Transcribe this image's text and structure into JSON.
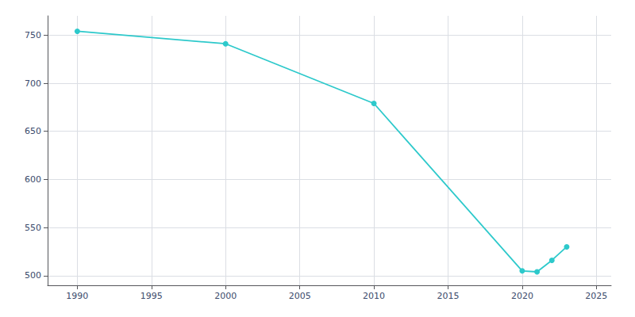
{
  "chart_data": {
    "type": "line",
    "x": [
      1990,
      2000,
      2010,
      2020,
      2021,
      2022,
      2023
    ],
    "values": [
      754,
      741,
      679,
      505,
      504,
      516,
      530
    ],
    "color": "#2dc9cb",
    "marker": "o",
    "xlim": [
      1988,
      2026
    ],
    "ylim": [
      490,
      770
    ],
    "xticks": [
      1990,
      1995,
      2000,
      2005,
      2010,
      2015,
      2020,
      2025
    ],
    "yticks": [
      500,
      550,
      600,
      650,
      700,
      750
    ],
    "grid": true
  }
}
